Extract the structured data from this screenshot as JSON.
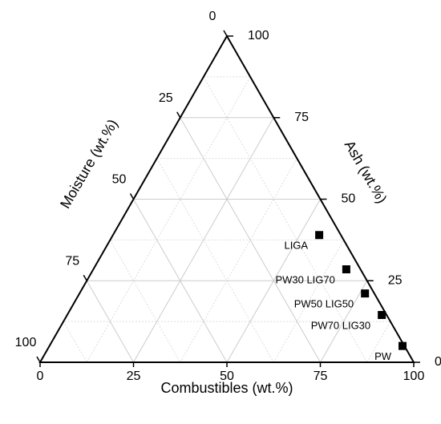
{
  "chart_data": {
    "type": "ternary",
    "a_label": "Combustibles (wt.%)",
    "b_label": "Ash (wt.%)",
    "c_label": "Moisture (wt.%)",
    "a_ticks": [
      0,
      25,
      50,
      75,
      100
    ],
    "b_ticks": [
      0,
      25,
      50,
      75,
      100
    ],
    "c_ticks": [
      0,
      25,
      50,
      75,
      100
    ],
    "grid": true,
    "minor_grid": true,
    "color": "#000000",
    "points": [
      {
        "name": "LIGA",
        "a": 55.2,
        "b": 39.0,
        "c": 5.8
      },
      {
        "name": "PW30 LIG70",
        "a": 67.7,
        "b": 28.5,
        "c": 3.8
      },
      {
        "name": "PW50 LIG50",
        "a": 76.4,
        "b": 21.1,
        "c": 2.5
      },
      {
        "name": "PW70 LIG30",
        "a": 84.2,
        "b": 14.5,
        "c": 1.3
      },
      {
        "name": "PW",
        "a": 94.5,
        "b": 5.0,
        "c": 0.5
      }
    ]
  }
}
